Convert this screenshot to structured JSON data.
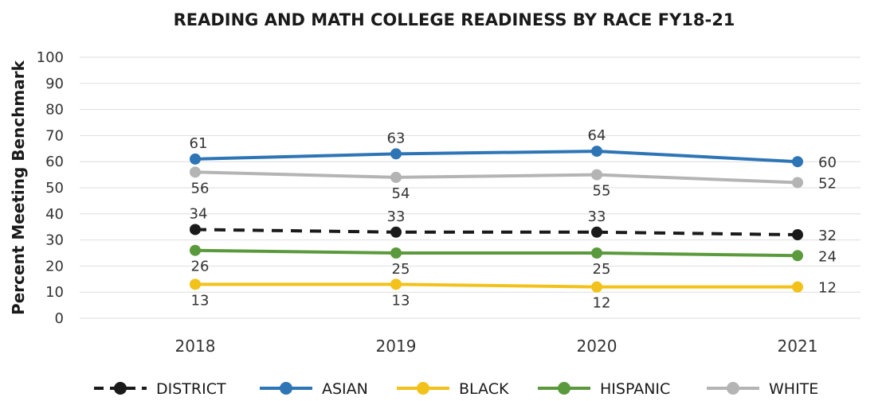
{
  "chart_data": {
    "type": "line",
    "title": "READING AND MATH COLLEGE READINESS BY RACE FY18-21",
    "ylabel": "Percent Meeting Benchmark",
    "xlabel": "",
    "categories": [
      "2018",
      "2019",
      "2020",
      "2021"
    ],
    "ylim": [
      0,
      100
    ],
    "yticks": [
      0,
      10,
      20,
      30,
      40,
      50,
      60,
      70,
      80,
      90,
      100
    ],
    "grid": true,
    "legend_position": "bottom",
    "series": [
      {
        "name": "DISTRICT",
        "values": [
          34,
          33,
          33,
          32
        ],
        "color": "#1a1a1a",
        "dashed": true
      },
      {
        "name": "ASIAN",
        "values": [
          61,
          63,
          64,
          60
        ],
        "color": "#2e75b6",
        "dashed": false
      },
      {
        "name": "BLACK",
        "values": [
          13,
          13,
          12,
          12
        ],
        "color": "#f2c21b",
        "dashed": false
      },
      {
        "name": "HISPANIC",
        "values": [
          26,
          25,
          25,
          24
        ],
        "color": "#5b9a3c",
        "dashed": false
      },
      {
        "name": "WHITE",
        "values": [
          56,
          54,
          55,
          52
        ],
        "color": "#b4b4b4",
        "dashed": false
      }
    ]
  }
}
